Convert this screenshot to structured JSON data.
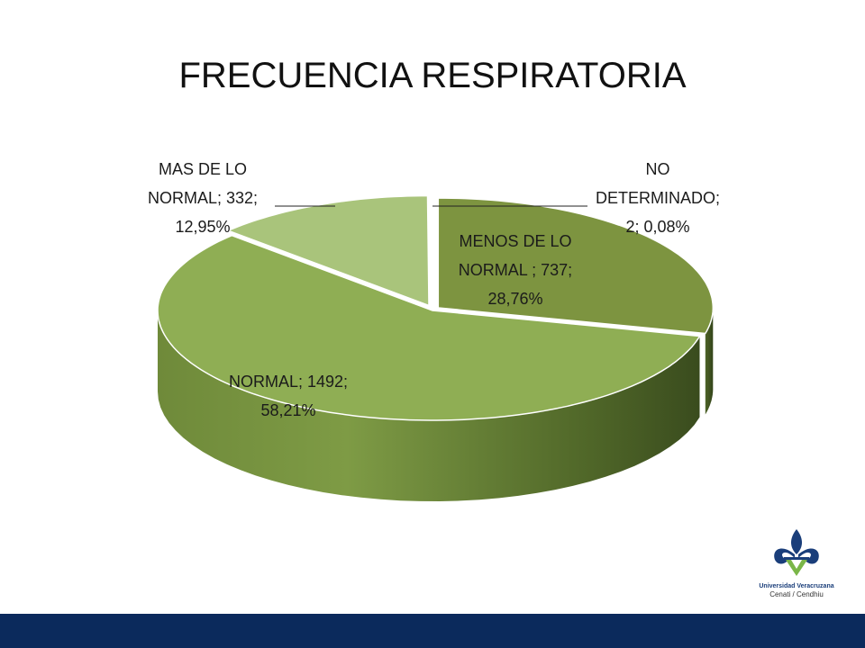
{
  "chart_data": {
    "type": "pie",
    "title": "FRECUENCIA RESPIRATORIA",
    "slices": [
      {
        "name": "MENOS DE LO NORMAL",
        "value": 737,
        "percent": 28.76,
        "label_lines": [
          "MENOS DE LO",
          "NORMAL ; 737;",
          "28,76%"
        ],
        "color": "#7d9440"
      },
      {
        "name": "NORMAL",
        "value": 1492,
        "percent": 58.21,
        "label_lines": [
          "NORMAL; 1492;",
          "58,21%"
        ],
        "color": "#8fae54"
      },
      {
        "name": "MAS DE LO NORMAL",
        "value": 332,
        "percent": 12.95,
        "label_lines": [
          "MAS DE LO",
          "NORMAL; 332;",
          "12,95%"
        ],
        "color": "#a9c47b"
      },
      {
        "name": "NO DETERMINADO",
        "value": 2,
        "percent": 0.08,
        "label_lines": [
          "NO",
          "DETERMINADO;",
          "2; 0,08%"
        ],
        "color": "#c3d6a0"
      }
    ],
    "legend": "none",
    "style": "3d-exploded"
  },
  "logo": {
    "name": "Universidad Veracruzana",
    "subtitle": "Cenati / Cendhiu",
    "colors": {
      "blue": "#1a3e7a",
      "green": "#7ab648"
    }
  },
  "footer": {
    "color": "#0b2a5c"
  }
}
